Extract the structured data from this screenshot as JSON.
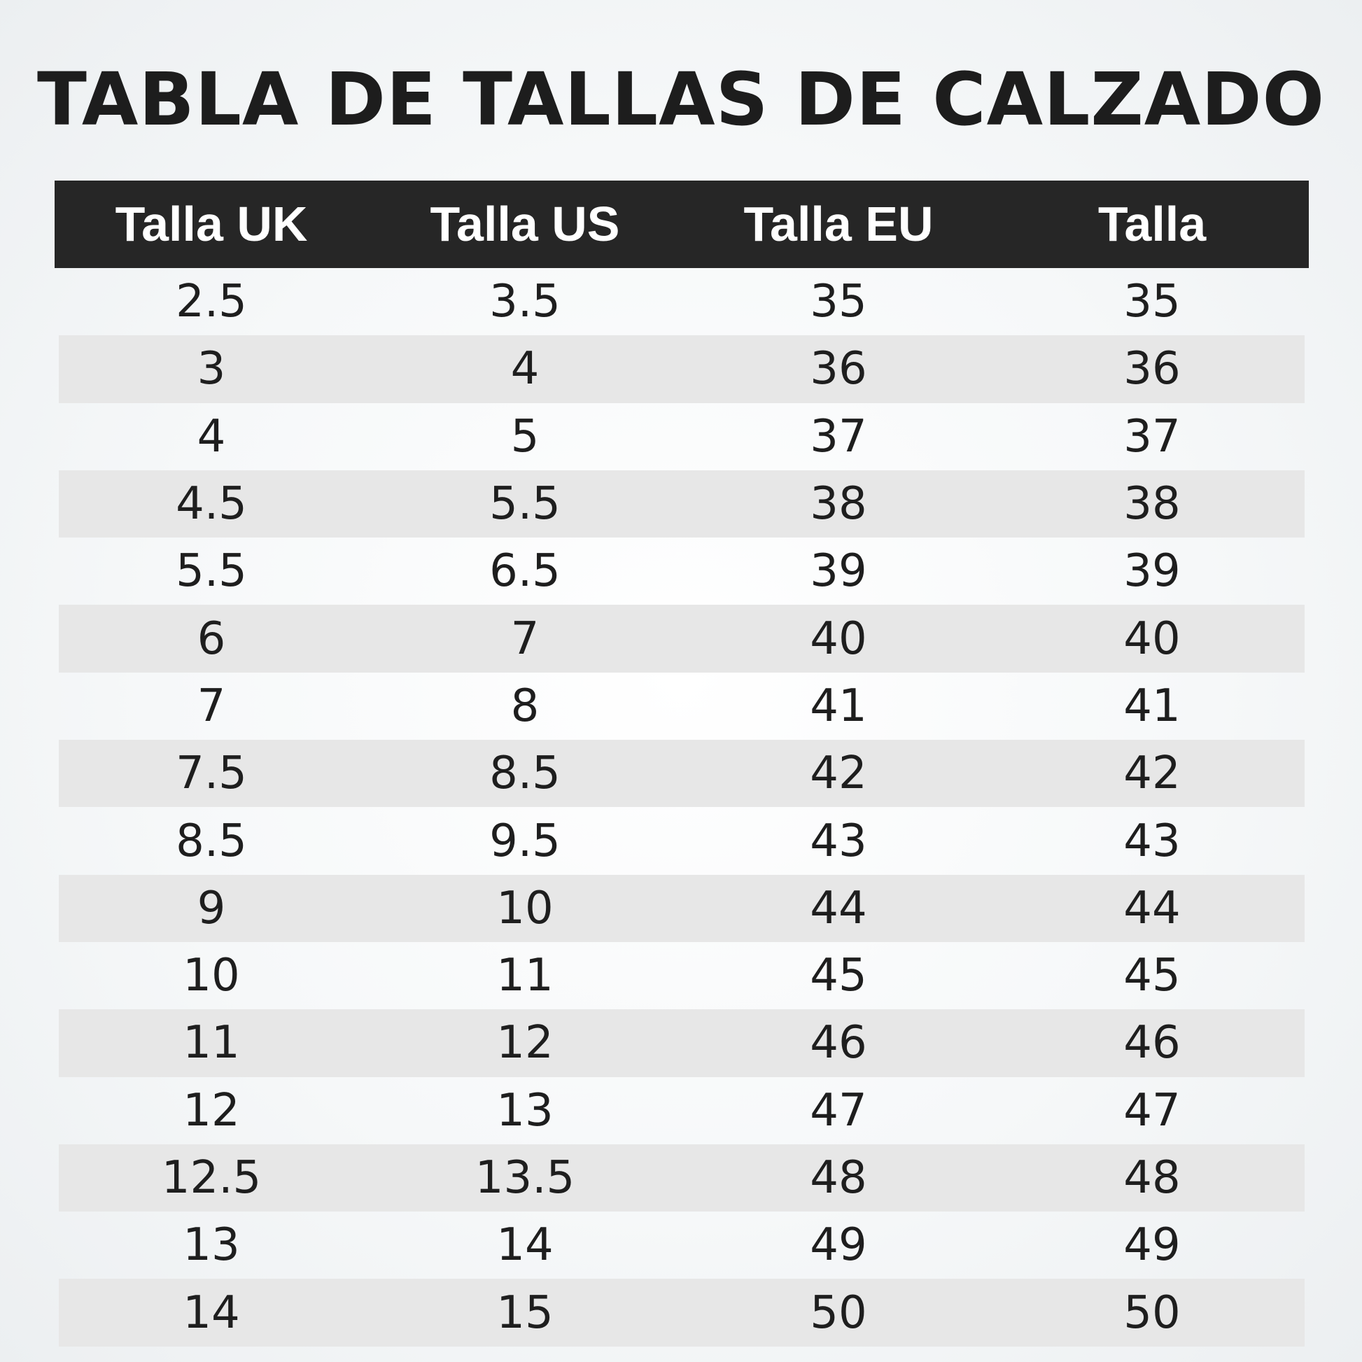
{
  "title": "TABLA DE TALLAS DE CALZADO",
  "table": {
    "headers": [
      "Talla UK",
      "Talla US",
      "Talla EU",
      "Talla"
    ],
    "rows": [
      [
        "2.5",
        "3.5",
        "35",
        "35"
      ],
      [
        "3",
        "4",
        "36",
        "36"
      ],
      [
        "4",
        "5",
        "37",
        "37"
      ],
      [
        "4.5",
        "5.5",
        "38",
        "38"
      ],
      [
        "5.5",
        "6.5",
        "39",
        "39"
      ],
      [
        "6",
        "7",
        "40",
        "40"
      ],
      [
        "7",
        "8",
        "41",
        "41"
      ],
      [
        "7.5",
        "8.5",
        "42",
        "42"
      ],
      [
        "8.5",
        "9.5",
        "43",
        "43"
      ],
      [
        "9",
        "10",
        "44",
        "44"
      ],
      [
        "10",
        "11",
        "45",
        "45"
      ],
      [
        "11",
        "12",
        "46",
        "46"
      ],
      [
        "12",
        "13",
        "47",
        "47"
      ],
      [
        "12.5",
        "13.5",
        "48",
        "48"
      ],
      [
        "13",
        "14",
        "49",
        "49"
      ],
      [
        "14",
        "15",
        "50",
        "50"
      ]
    ]
  },
  "colors": {
    "header_background": "#262626",
    "header_text": "#ffffff",
    "stripe": "#e7e7e7",
    "text": "#1e1e1e"
  }
}
